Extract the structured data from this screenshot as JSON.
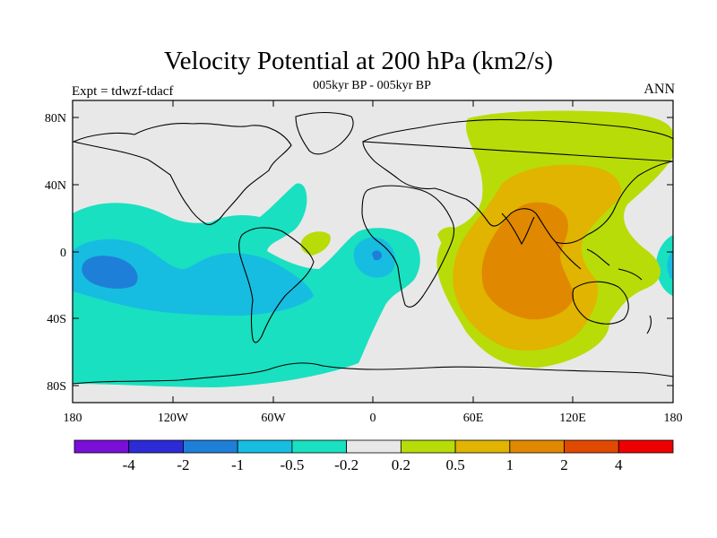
{
  "title": "Velocity Potential at 200 hPa (km2/s)",
  "subtitle": "005kyr BP - 005kyr BP",
  "left_label": "Expt = tdwzf-tdacf",
  "right_label": "ANN",
  "lat_ticks": [
    "80N",
    "40N",
    "0",
    "40S",
    "80S"
  ],
  "lon_ticks": [
    "180",
    "120W",
    "60W",
    "0",
    "60E",
    "120E",
    "180"
  ],
  "colorbar": {
    "labels": [
      "-4",
      "-2",
      "-1",
      "-0.5",
      "-0.2",
      "0.2",
      "0.5",
      "1",
      "2",
      "4"
    ],
    "colors": [
      "#7a0fd8",
      "#2d2bd6",
      "#1e7fd8",
      "#16bde0",
      "#19e0c0",
      "#e8e8e8",
      "#b8dc08",
      "#e0b400",
      "#e08800",
      "#e04a00",
      "#ee0000"
    ]
  },
  "colors": {
    "land_outline": "#000000",
    "neutral": "#e8e8e8"
  }
}
